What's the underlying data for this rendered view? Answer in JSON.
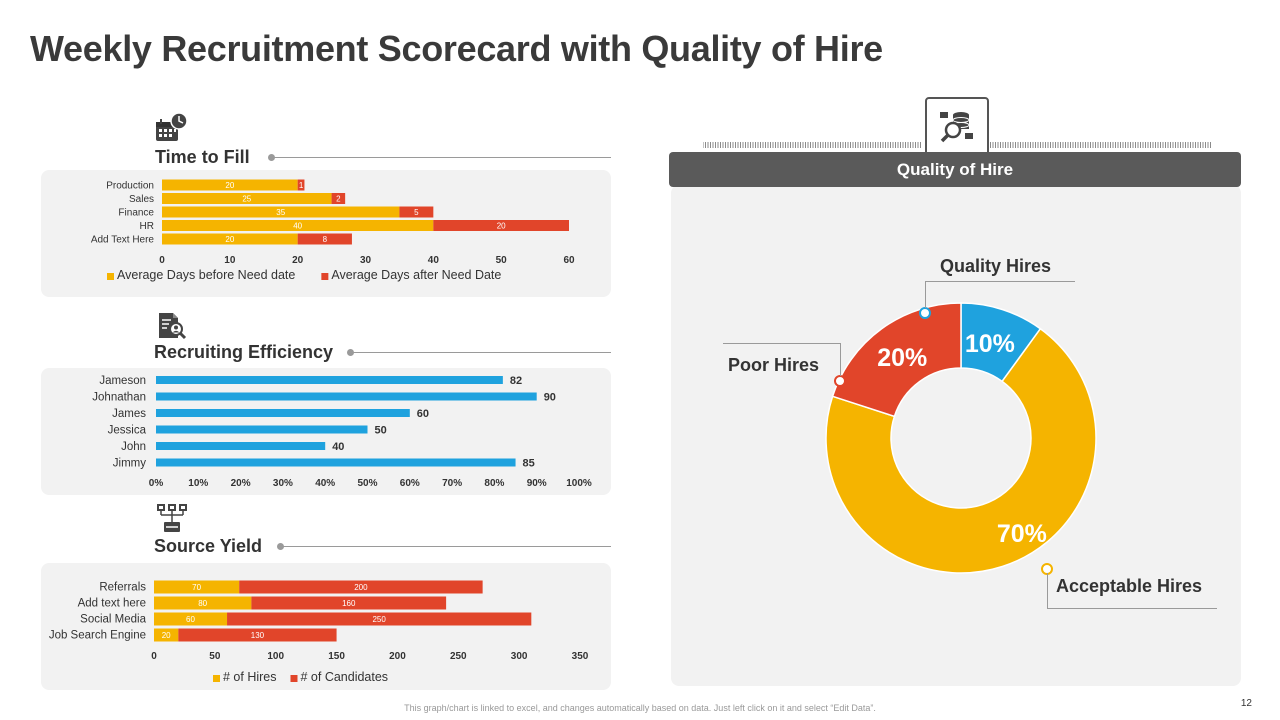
{
  "page": {
    "title": "Weekly Recruitment Scorecard with Quality of Hire",
    "footer_note": "This graph/chart is linked to excel, and changes automatically based on data. Just left click on it and select “Edit Data”.",
    "page_number": "12"
  },
  "icons": {
    "time_to_fill": "calendar-clock-icon",
    "recruiting_efficiency": "document-magnifier-icon",
    "source_yield": "network-icon",
    "quality_of_hire": "database-search-icon"
  },
  "colors": {
    "orange": "#F5B400",
    "red": "#E1452A",
    "blue": "#1FA2DE",
    "text": "#333333",
    "header": "#5A5A5A"
  },
  "chart_data": [
    {
      "id": "time_to_fill",
      "type": "bar",
      "orientation": "horizontal",
      "stacked": true,
      "title": "Time to Fill",
      "categories": [
        "Production",
        "Sales",
        "Finance",
        "HR",
        "Add Text Here"
      ],
      "series": [
        {
          "name": "Average Days before Need date",
          "values": [
            20,
            25,
            35,
            40,
            20
          ],
          "color": "#F5B400"
        },
        {
          "name": "Average Days after Need Date",
          "values": [
            1,
            2,
            5,
            20,
            8
          ],
          "color": "#E1452A"
        }
      ],
      "xlim": [
        0,
        60
      ],
      "xticks": [
        0,
        10,
        20,
        30,
        40,
        50,
        60
      ],
      "legend": "bottom"
    },
    {
      "id": "recruiting_efficiency",
      "type": "bar",
      "orientation": "horizontal",
      "title": "Recruiting Efficiency",
      "categories": [
        "Jameson",
        "Johnathan",
        "James",
        "Jessica",
        "John",
        "Jimmy"
      ],
      "values": [
        82,
        90,
        60,
        50,
        40,
        85
      ],
      "color": "#1FA2DE",
      "xlim": [
        0,
        100
      ],
      "xticks": [
        "0%",
        "10%",
        "20%",
        "30%",
        "40%",
        "50%",
        "60%",
        "70%",
        "80%",
        "90%",
        "100%"
      ]
    },
    {
      "id": "source_yield",
      "type": "bar",
      "orientation": "horizontal",
      "stacked": true,
      "title": "Source Yield",
      "categories": [
        "Referrals",
        "Add text here",
        "Social Media",
        "Job Search Engine"
      ],
      "series": [
        {
          "name": "# of Hires",
          "values": [
            70,
            80,
            60,
            20
          ],
          "color": "#F5B400"
        },
        {
          "name": "# of Candidates",
          "values": [
            200,
            160,
            250,
            130
          ],
          "color": "#E1452A"
        }
      ],
      "xlim": [
        0,
        350
      ],
      "xticks": [
        0,
        50,
        100,
        150,
        200,
        250,
        300,
        350
      ],
      "legend": "bottom"
    },
    {
      "id": "quality_of_hire",
      "type": "pie",
      "donut": true,
      "title": "Quality of Hire",
      "slices": [
        {
          "name": "Acceptable Hires",
          "value": 70,
          "label": "70%",
          "color": "#F5B400"
        },
        {
          "name": "Poor Hires",
          "value": 20,
          "label": "20%",
          "color": "#E1452A"
        },
        {
          "name": "Quality Hires",
          "value": 10,
          "label": "10%",
          "color": "#1FA2DE"
        }
      ]
    }
  ]
}
